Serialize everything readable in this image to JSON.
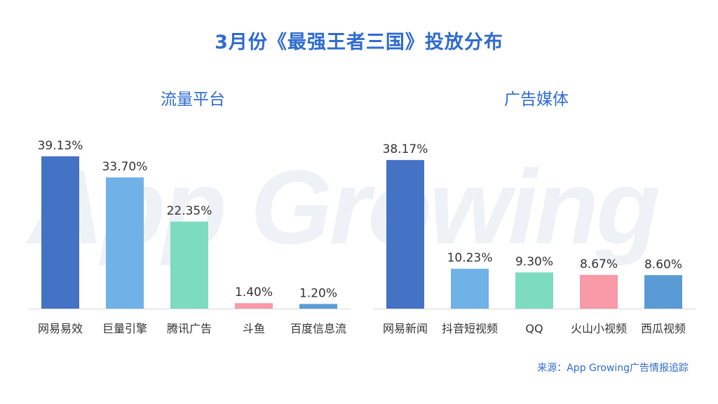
{
  "title": "3月份《最强王者三国》投放分布",
  "watermark": "App Growing",
  "source": "来源：App Growing广告情报追踪",
  "colors": {
    "title": "#2f6bd0",
    "bar_dark_blue": "#4472c4",
    "bar_light_blue": "#70b1e8",
    "bar_teal": "#7ddcc0",
    "bar_pink": "#f89aa8",
    "bar_steel_blue": "#5b9bd5"
  },
  "chart_data": [
    {
      "type": "bar",
      "title": "流量平台",
      "categories": [
        "网易易效",
        "巨量引擎",
        "腾讯广告",
        "斗鱼",
        "百度信息流"
      ],
      "values": [
        39.13,
        33.7,
        22.35,
        1.4,
        1.2
      ],
      "value_labels": [
        "39.13%",
        "33.70%",
        "22.35%",
        "1.40%",
        "1.20%"
      ],
      "bar_colors": [
        "#4472c4",
        "#70b1e8",
        "#7ddcc0",
        "#f89aa8",
        "#5b9bd5"
      ],
      "ylim": [
        0,
        40
      ],
      "grid": false,
      "legend": "none"
    },
    {
      "type": "bar",
      "title": "广告媒体",
      "categories": [
        "网易新闻",
        "抖音短视频",
        "QQ",
        "火山小视频",
        "西瓜视频"
      ],
      "values": [
        38.17,
        10.23,
        9.3,
        8.67,
        8.6
      ],
      "value_labels": [
        "38.17%",
        "10.23%",
        "9.30%",
        "8.67%",
        "8.60%"
      ],
      "bar_colors": [
        "#4472c4",
        "#70b1e8",
        "#7ddcc0",
        "#f89aa8",
        "#5b9bd5"
      ],
      "ylim": [
        0,
        40
      ],
      "grid": false,
      "legend": "none"
    }
  ]
}
